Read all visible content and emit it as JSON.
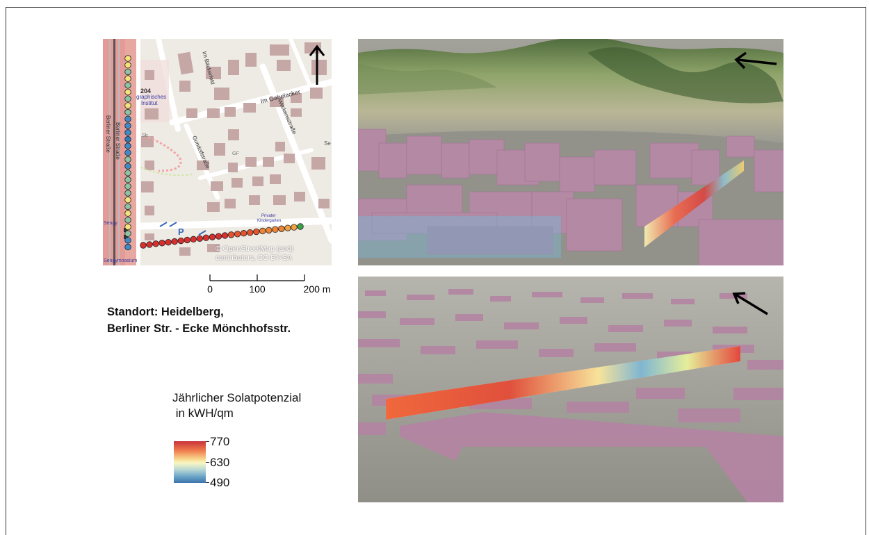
{
  "map": {
    "streets": [
      "Berliner Straße",
      "Berliner Straße",
      "Im Bäckerfeld",
      "Im Gabelacker",
      "Wilckensstraße",
      "Gundolfstraße"
    ],
    "labels": {
      "number": "204",
      "institute_1": "graphisches",
      "institute_2": "Institut",
      "sb": "Sb",
      "gf": "GF",
      "cut_right": "Se",
      "cut_left_1": "Sengy",
      "cut_left_2": "Sengymnasium",
      "kindergarten_1": "Privater",
      "kindergarten_2": "Kindergarten",
      "parking": "P"
    },
    "attribution_line1": "© OpenStreetMap (and)",
    "attribution_line2": "contributors, CC-BY-SA",
    "north_arrow": "arrow-up-icon"
  },
  "scale_bar": {
    "ticks": [
      "0",
      "100",
      "200 m"
    ],
    "values": [
      0,
      100,
      200
    ]
  },
  "location": {
    "line1": "Standort: Heidelberg,",
    "line2": "Berliner Str. - Ecke Mönchhofsstr."
  },
  "legend": {
    "title_line1": "Jährlicher Solatpotenzial",
    "title_line2": " in kWH/qm",
    "max": "770",
    "mid": "630",
    "min": "490",
    "colors": [
      "#c9323a",
      "#ef7a4c",
      "#fbf6c4",
      "#6ea7c9",
      "#3d74ad"
    ]
  },
  "views": {
    "top_direction": "arrow-left-icon",
    "bottom_direction": "arrow-up-left-icon"
  }
}
